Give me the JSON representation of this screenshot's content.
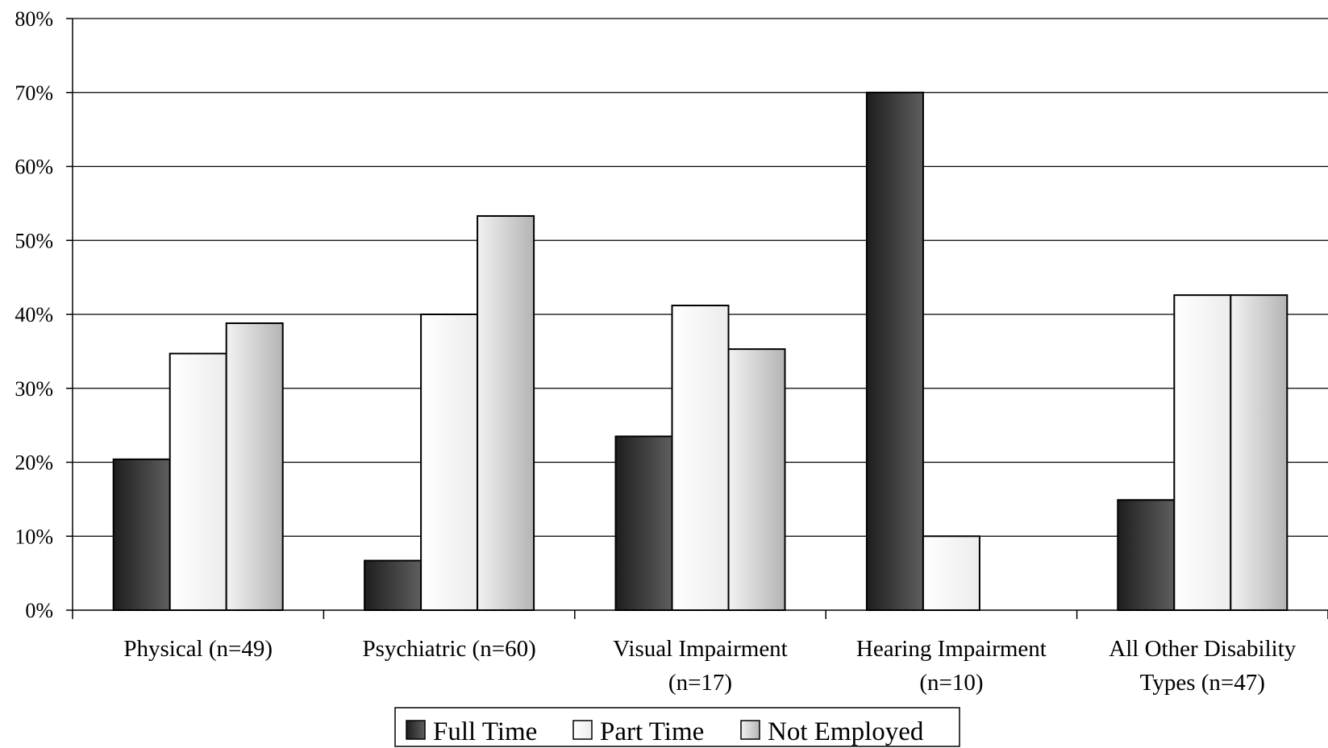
{
  "chart_data": {
    "type": "bar",
    "title": "",
    "xlabel": "",
    "ylabel": "",
    "ylim": [
      0,
      80
    ],
    "y_ticks": [
      "0%",
      "10%",
      "20%",
      "30%",
      "40%",
      "50%",
      "60%",
      "70%",
      "80%"
    ],
    "grid": true,
    "legend_position": "bottom",
    "categories": [
      [
        "Physical (n=49)"
      ],
      [
        "Psychiatric (n=60)"
      ],
      [
        "Visual Impairment",
        "(n=17)"
      ],
      [
        "Hearing Impairment",
        "(n=10)"
      ],
      [
        "All Other Disability",
        "Types (n=47)"
      ]
    ],
    "series": [
      {
        "name": "Full Time",
        "values": [
          20.4,
          6.7,
          23.5,
          70.0,
          14.9
        ],
        "color": "#3c3c3c"
      },
      {
        "name": "Part Time",
        "values": [
          34.7,
          40.0,
          41.2,
          10.0,
          42.6
        ],
        "color": "#f8f8f8"
      },
      {
        "name": "Not Employed",
        "values": [
          38.8,
          53.3,
          35.3,
          0,
          42.6
        ],
        "color": "#c8c8c8"
      }
    ]
  }
}
